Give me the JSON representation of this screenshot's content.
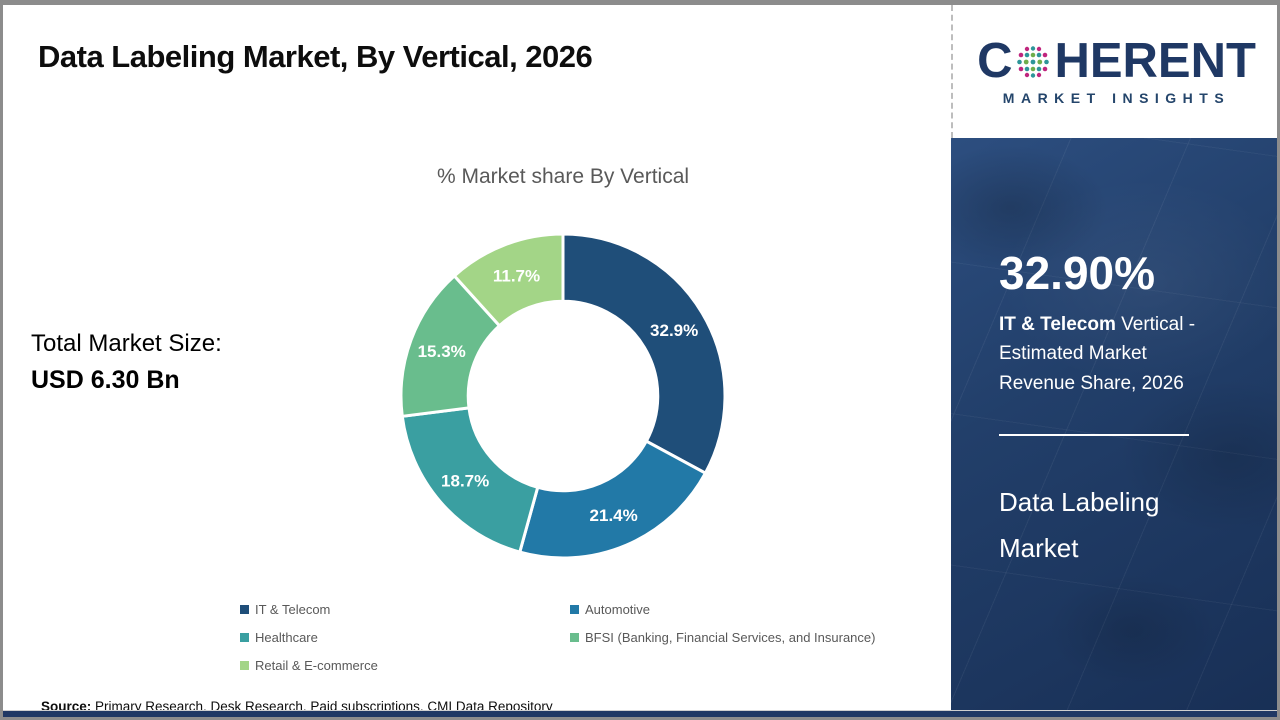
{
  "page": {
    "title": "Data Labeling Market, By Vertical, 2026",
    "total_market_label": "Total Market Size:",
    "total_market_value": "USD 6.30 Bn",
    "source_label": "Source:",
    "source_text": " Primary Research, Desk Research, Paid subscriptions, CMI Data Repository"
  },
  "logo": {
    "word_start": "C",
    "word_end": "HERENT",
    "subtitle": "MARKET INSIGHTS",
    "navy": "#1f3864",
    "globe_colors": {
      "teal": "#2e9599",
      "green": "#6fae4b",
      "magenta": "#c0267e"
    }
  },
  "sidebar": {
    "stat_value": "32.90%",
    "stat_bold": "IT & Telecom",
    "stat_rest": " Vertical - Estimated Market Revenue Share, 2026",
    "report_name": "Data Labeling Market",
    "background": "#1e3c68"
  },
  "chart_data": {
    "type": "pie",
    "subtype": "donut",
    "title": "% Market share By Vertical",
    "categories": [
      "IT & Telecom",
      "Automotive",
      "Healthcare",
      "BFSI (Banking, Financial Services, and Insurance)",
      "Retail & E-commerce"
    ],
    "values": [
      32.9,
      21.4,
      18.7,
      15.3,
      11.7
    ],
    "labels": [
      "32.9%",
      "21.4%",
      "18.7%",
      "15.3%",
      "11.7%"
    ],
    "colors": [
      "#1f4e79",
      "#2279a7",
      "#3a9fa1",
      "#69bd8d",
      "#a3d587"
    ],
    "start_angle_deg": 0,
    "direction": "clockwise",
    "donut_hole_ratio": 0.585,
    "slice_gap_stroke": "#ffffff",
    "legend_position": "bottom"
  }
}
